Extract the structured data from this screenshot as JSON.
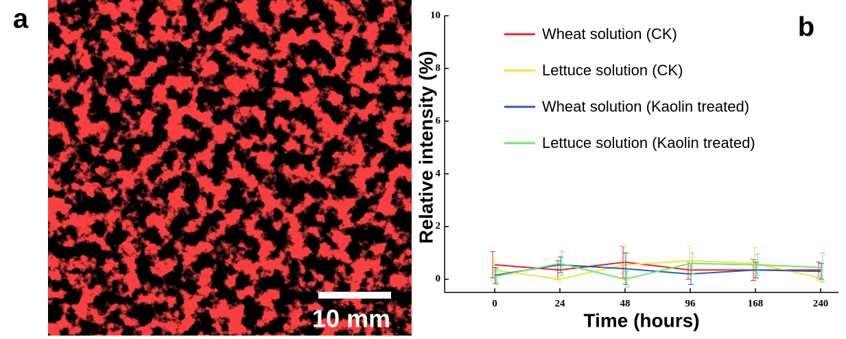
{
  "panel_a": {
    "label": "a",
    "scale_bar": "10 mm"
  },
  "chart_data": {
    "type": "line",
    "panel_label": "b",
    "x_label": "Time (hours)",
    "y_label": "Relative intensity (%)",
    "categories": [
      "0",
      "24",
      "48",
      "96",
      "168",
      "240"
    ],
    "ylim": [
      -0.5,
      10
    ],
    "yticks": [
      0,
      2,
      4,
      6,
      8,
      10
    ],
    "legend": "upper left",
    "series": [
      {
        "name": "Wheat solution (CK)",
        "color": "#e8202a",
        "values": [
          0.55,
          0.35,
          0.65,
          0.35,
          0.35,
          0.35
        ],
        "errors": [
          0.5,
          0.35,
          0.6,
          0.35,
          0.4,
          0.3
        ]
      },
      {
        "name": "Lettuce solution (CK)",
        "color": "#f2e33a",
        "values": [
          0.35,
          0.0,
          0.55,
          0.7,
          0.6,
          0.05
        ],
        "errors": [
          0.4,
          0.1,
          0.7,
          0.55,
          0.6,
          0.1
        ]
      },
      {
        "name": "Wheat solution (Kaolin treated)",
        "color": "#2a5eaa",
        "values": [
          0.15,
          0.55,
          0.4,
          0.2,
          0.35,
          0.3
        ],
        "errors": [
          0.3,
          0.3,
          0.6,
          0.4,
          0.3,
          0.3
        ]
      },
      {
        "name": "Lettuce solution (Kaolin treated)",
        "color": "#6ee86a",
        "values": [
          0.1,
          0.6,
          0.0,
          0.6,
          0.55,
          0.45
        ],
        "errors": [
          0.3,
          0.45,
          0.3,
          0.4,
          0.4,
          0.55
        ]
      }
    ]
  }
}
